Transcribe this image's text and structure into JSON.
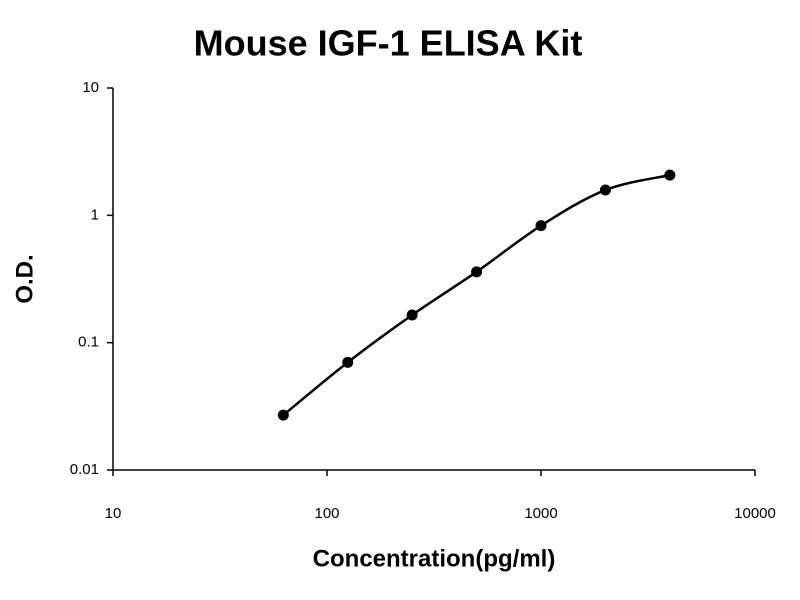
{
  "chart_data": {
    "type": "scatter",
    "title": "Mouse IGF-1 ELISA Kit",
    "x_label": "Concentration(pg/ml)",
    "y_label": "O.D.",
    "x": [
      62.5,
      125,
      250,
      500,
      1000,
      2000,
      4000
    ],
    "values": [
      0.027,
      0.07,
      0.165,
      0.36,
      0.83,
      1.58,
      2.07
    ],
    "color": "#000000",
    "xlim": [
      10,
      10000
    ],
    "xticks": [
      10,
      100,
      1000,
      10000
    ],
    "x_log": true,
    "ylim": [
      0.01,
      10
    ],
    "yticks": [
      0.01,
      0.1,
      1,
      10
    ],
    "y_log": true,
    "smooth_line": true
  }
}
